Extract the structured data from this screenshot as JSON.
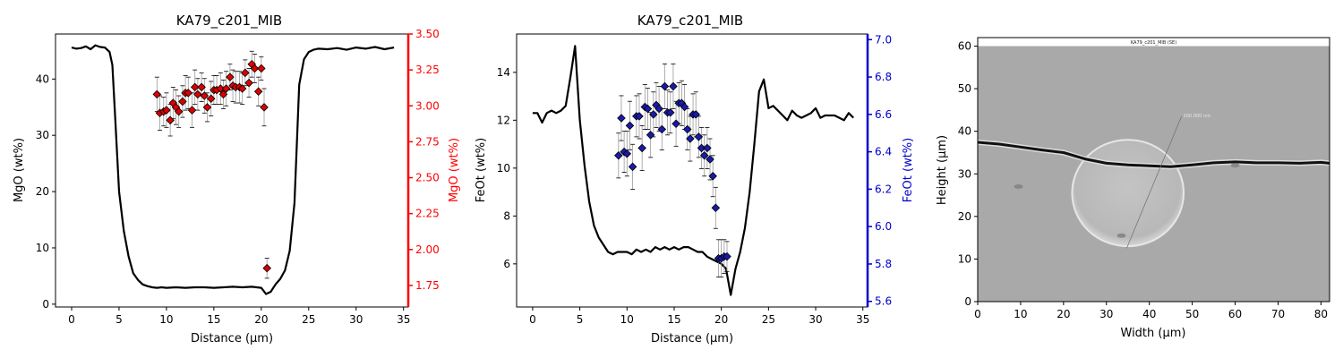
{
  "chart_data": [
    {
      "type": "line",
      "title": "KA79_c201_MIB",
      "xlabel": "Distance (µm)",
      "ylabel": "MgO (wt%)",
      "ylabel_right": "MgO (wt%)",
      "xlim": [
        -1.7,
        35.5
      ],
      "ylim": [
        -0.5,
        48
      ],
      "ylim_right": [
        1.6,
        3.5
      ],
      "xticks": [
        0,
        5,
        10,
        15,
        20,
        25,
        30,
        35
      ],
      "yticks": [
        0,
        10,
        20,
        30,
        40
      ],
      "yticks_right": [
        1.75,
        2.0,
        2.25,
        2.5,
        2.75,
        3.0,
        3.25,
        3.5
      ],
      "ytick_labels_right": [
        "1.75",
        "2.00",
        "2.25",
        "2.50",
        "2.75",
        "3.00",
        "3.25",
        "3.50"
      ],
      "right_axis_color": "#ff0000",
      "marker_color": "#dd0000",
      "line_color": "#000000",
      "line": {
        "x": [
          0,
          0.5,
          1,
          1.5,
          2,
          2.5,
          3,
          3.5,
          4,
          4.3,
          4.6,
          5,
          5.5,
          6,
          6.5,
          7,
          7.5,
          8,
          8.5,
          9,
          9.5,
          10,
          11,
          12,
          13,
          14,
          15,
          16,
          17,
          18,
          19,
          19.5,
          20,
          20.5,
          21,
          21.5,
          22,
          22.5,
          23,
          23.5,
          24,
          24.5,
          25,
          25.5,
          26,
          27,
          28,
          29,
          30,
          31,
          32,
          33,
          34
        ],
        "y": [
          45.6,
          45.4,
          45.5,
          45.8,
          45.3,
          46.0,
          45.7,
          45.6,
          44.8,
          42.5,
          33.0,
          20.0,
          13.0,
          8.5,
          5.5,
          4.3,
          3.5,
          3.2,
          3.0,
          2.9,
          3.0,
          2.9,
          3.0,
          2.9,
          3.0,
          3.0,
          2.9,
          3.0,
          3.1,
          3.0,
          3.1,
          3.0,
          2.9,
          1.8,
          2.2,
          3.5,
          4.5,
          6.0,
          9.5,
          18.0,
          39.0,
          43.5,
          44.8,
          45.2,
          45.4,
          45.3,
          45.5,
          45.2,
          45.6,
          45.4,
          45.7,
          45.3,
          45.6
        ]
      },
      "markers": {
        "x": [
          9.0,
          9.3,
          9.7,
          10.0,
          10.4,
          10.7,
          11.0,
          11.3,
          11.7,
          12.0,
          12.3,
          12.7,
          13.0,
          13.3,
          13.7,
          14.0,
          14.3,
          14.7,
          15.0,
          15.3,
          15.7,
          16.0,
          16.3,
          16.7,
          17.0,
          17.3,
          17.7,
          18.0,
          18.3,
          18.7,
          19.0,
          19.3,
          19.7,
          20.0,
          20.3,
          20.6
        ],
        "y": [
          3.08,
          2.95,
          2.96,
          2.97,
          2.9,
          3.02,
          2.99,
          2.96,
          3.03,
          3.09,
          3.09,
          2.97,
          3.13,
          3.08,
          3.13,
          3.07,
          2.99,
          3.05,
          3.11,
          3.11,
          3.12,
          3.08,
          3.12,
          3.2,
          3.14,
          3.13,
          3.13,
          3.12,
          3.23,
          3.16,
          3.29,
          3.26,
          3.1,
          3.26,
          2.99,
          1.87
        ],
        "err": [
          0.12,
          0.12,
          0.1,
          0.12,
          0.11,
          0.11,
          0.12,
          0.11,
          0.11,
          0.12,
          0.11,
          0.12,
          0.12,
          0.11,
          0.1,
          0.12,
          0.1,
          0.12,
          0.1,
          0.1,
          0.11,
          0.1,
          0.12,
          0.09,
          0.11,
          0.11,
          0.11,
          0.11,
          0.09,
          0.1,
          0.09,
          0.1,
          0.1,
          0.08,
          0.13,
          0.07
        ]
      }
    },
    {
      "type": "line",
      "title": "KA79_c201_MIB",
      "xlabel": "Distance (µm)",
      "ylabel": "FeOt (wt%)",
      "ylabel_right": "FeOt (wt%)",
      "xlim": [
        -1.7,
        35.5
      ],
      "ylim": [
        4.2,
        15.6
      ],
      "ylim_right": [
        5.57,
        7.03
      ],
      "xticks": [
        0,
        5,
        10,
        15,
        20,
        25,
        30,
        35
      ],
      "yticks": [
        6,
        8,
        10,
        12,
        14
      ],
      "yticks_right": [
        5.6,
        5.8,
        6.0,
        6.2,
        6.4,
        6.6,
        6.8,
        7.0
      ],
      "ytick_labels_right": [
        "5.6",
        "5.8",
        "6.0",
        "6.2",
        "6.4",
        "6.6",
        "6.8",
        "7.0"
      ],
      "right_axis_color": "#0000cc",
      "marker_color": "#1a1aaa",
      "line_color": "#000000",
      "line": {
        "x": [
          0,
          0.5,
          1,
          1.5,
          2,
          2.5,
          3,
          3.5,
          4,
          4.5,
          5,
          5.5,
          6,
          6.5,
          7,
          7.5,
          8,
          8.5,
          9,
          9.5,
          10,
          10.5,
          11,
          11.5,
          12,
          12.5,
          13,
          13.5,
          14,
          14.5,
          15,
          15.5,
          16,
          16.5,
          17,
          17.5,
          18,
          18.5,
          19,
          19.5,
          20,
          20.5,
          21,
          21.5,
          22,
          22.5,
          23,
          23.5,
          24,
          24.5,
          25,
          25.5,
          26,
          26.5,
          27,
          27.5,
          28,
          28.5,
          29,
          29.5,
          30,
          30.5,
          31,
          31.5,
          32,
          32.5,
          33,
          33.5,
          34
        ],
        "y": [
          12.3,
          12.3,
          11.9,
          12.3,
          12.4,
          12.3,
          12.4,
          12.6,
          13.8,
          15.1,
          12.0,
          10.1,
          8.6,
          7.6,
          7.1,
          6.8,
          6.5,
          6.4,
          6.5,
          6.5,
          6.5,
          6.4,
          6.6,
          6.5,
          6.6,
          6.5,
          6.7,
          6.6,
          6.7,
          6.6,
          6.7,
          6.6,
          6.7,
          6.7,
          6.6,
          6.5,
          6.5,
          6.3,
          6.2,
          6.1,
          6.0,
          5.8,
          4.7,
          5.8,
          6.5,
          7.5,
          9.0,
          11.0,
          13.2,
          13.7,
          12.5,
          12.6,
          12.4,
          12.2,
          12.0,
          12.4,
          12.2,
          12.1,
          12.2,
          12.3,
          12.5,
          12.1,
          12.2,
          12.2,
          12.2,
          12.1,
          12.0,
          12.3,
          12.1
        ]
      },
      "markers": {
        "x": [
          9.1,
          9.4,
          9.7,
          10.0,
          10.3,
          10.6,
          11.0,
          11.3,
          11.6,
          11.9,
          12.2,
          12.5,
          12.8,
          13.1,
          13.4,
          13.7,
          14.0,
          14.3,
          14.6,
          14.9,
          15.2,
          15.5,
          15.8,
          16.1,
          16.4,
          16.7,
          17.0,
          17.3,
          17.6,
          17.9,
          18.2,
          18.5,
          18.8,
          19.1,
          19.4,
          19.7,
          20.0,
          20.3,
          20.6
        ],
        "y": [
          6.38,
          6.58,
          6.4,
          6.39,
          6.54,
          6.32,
          6.59,
          6.59,
          6.42,
          6.64,
          6.63,
          6.49,
          6.6,
          6.65,
          6.63,
          6.52,
          6.75,
          6.61,
          6.61,
          6.75,
          6.55,
          6.66,
          6.66,
          6.64,
          6.52,
          6.47,
          6.6,
          6.6,
          6.48,
          6.42,
          6.38,
          6.42,
          6.36,
          6.27,
          6.1,
          5.83,
          5.83,
          5.84,
          5.84
        ],
        "err": [
          0.12,
          0.12,
          0.11,
          0.12,
          0.13,
          0.12,
          0.11,
          0.12,
          0.12,
          0.12,
          0.11,
          0.12,
          0.12,
          0.12,
          0.12,
          0.11,
          0.12,
          0.12,
          0.11,
          0.12,
          0.12,
          0.11,
          0.12,
          0.12,
          0.11,
          0.12,
          0.11,
          0.12,
          0.11,
          0.11,
          0.11,
          0.11,
          0.11,
          0.11,
          0.11,
          0.1,
          0.1,
          0.09,
          0.08
        ]
      }
    },
    {
      "type": "image",
      "title": "",
      "image_caption": "KA79_c201_MIB (SE)",
      "overlay_label": "200.000 nm",
      "xlabel": "Width (µm)",
      "ylabel": "Height (µm)",
      "xlim": [
        0,
        82
      ],
      "ylim": [
        0,
        62
      ],
      "xticks": [
        0,
        10,
        20,
        30,
        40,
        50,
        60,
        70,
        80
      ],
      "yticks": [
        0,
        10,
        20,
        30,
        40,
        50,
        60
      ],
      "image_top": 60,
      "background_color": "#a9a9a9",
      "vein": {
        "x": [
          0,
          5,
          10,
          15,
          20,
          25,
          30,
          35,
          40,
          45,
          50,
          55,
          60,
          65,
          70,
          75,
          80,
          82
        ],
        "y": [
          37.4,
          37.0,
          36.3,
          35.6,
          35.0,
          33.5,
          32.5,
          32.1,
          31.9,
          31.7,
          32.1,
          32.6,
          32.8,
          32.6,
          32.6,
          32.5,
          32.7,
          32.5
        ]
      },
      "inclusion": {
        "cx": 35,
        "cy": 25.5,
        "rx": 13,
        "ry": 12.5
      },
      "small_spots": [
        {
          "x": 9.5,
          "y": 27
        },
        {
          "x": 60,
          "y": 32
        },
        {
          "x": 33.5,
          "y": 15.5
        }
      ],
      "transect": {
        "x1": 34.7,
        "y1": 12.5,
        "x2": 47.5,
        "y2": 43.5
      }
    }
  ]
}
